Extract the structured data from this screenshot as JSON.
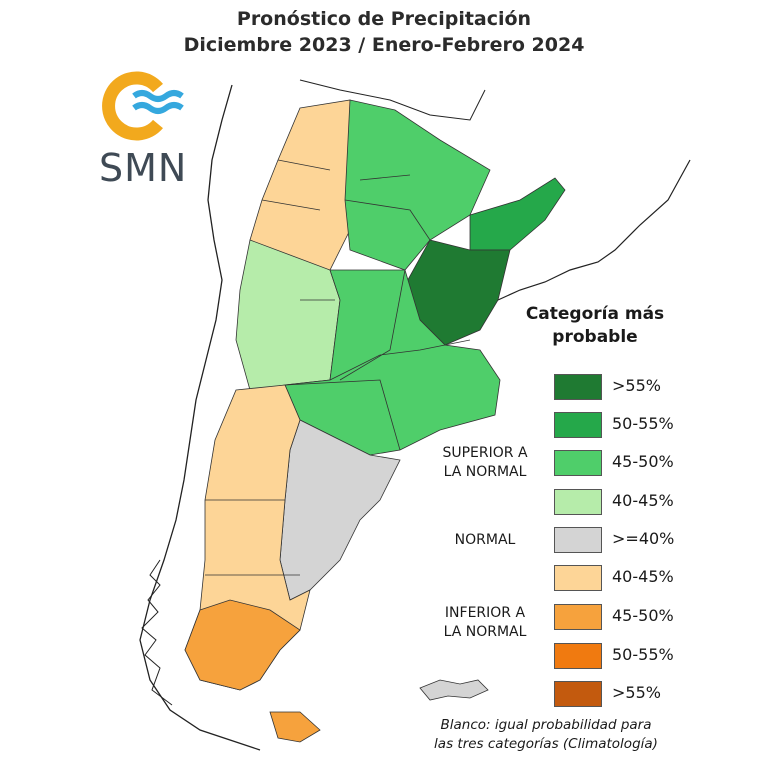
{
  "title": {
    "line1": "Pronóstico de Precipitación",
    "line2": "Diciembre 2023 / Enero-Febrero 2024"
  },
  "logo": {
    "text": "SMN",
    "colors": {
      "ring": "#f2a91d",
      "waves": "#35a8de",
      "text": "#3f4a55"
    }
  },
  "legend": {
    "title_line1": "Categoría más",
    "title_line2": "probable",
    "items": [
      {
        "label": ">55%",
        "color": "#1f7a32",
        "group": "superior"
      },
      {
        "label": "50-55%",
        "color": "#25a84a",
        "group": "superior"
      },
      {
        "label": "45-50%",
        "color": "#4fce6a",
        "group": "superior"
      },
      {
        "label": "40-45%",
        "color": "#b6ecaa",
        "group": "superior"
      },
      {
        "label": ">=40%",
        "color": "#d4d4d4",
        "group": "normal"
      },
      {
        "label": "40-45%",
        "color": "#fdd597",
        "group": "inferior"
      },
      {
        "label": "45-50%",
        "color": "#f6a23d",
        "group": "inferior"
      },
      {
        "label": "50-55%",
        "color": "#f07a10",
        "group": "inferior"
      },
      {
        "label": ">55%",
        "color": "#c35a0e",
        "group": "inferior"
      }
    ],
    "groups": {
      "superior_line1": "SUPERIOR A",
      "superior_line2": "LA NORMAL",
      "normal": "NORMAL",
      "inferior_line1": "INFERIOR A",
      "inferior_line2": "LA NORMAL"
    }
  },
  "note": {
    "line1": "Blanco: igual probabilidad para",
    "line2": "las tres categorías (Climatología)"
  }
}
